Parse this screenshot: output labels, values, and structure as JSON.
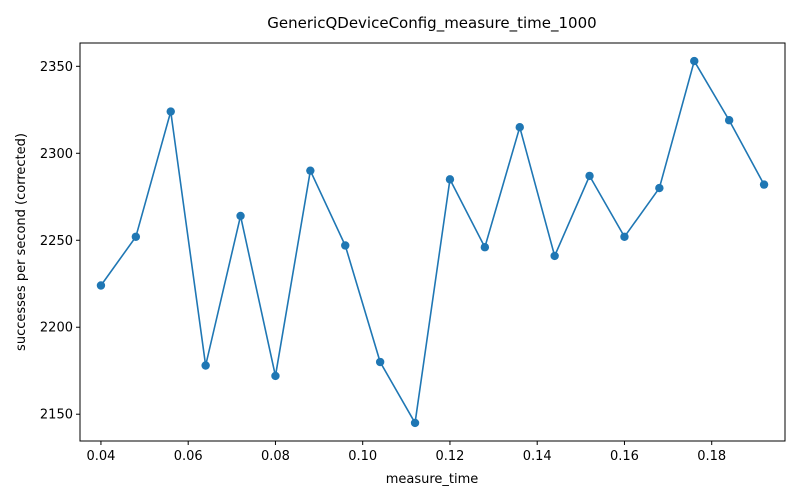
{
  "chart_data": {
    "type": "line",
    "title": "GenericQDeviceConfig_measure_time_1000",
    "xlabel": "measure_time",
    "ylabel": "successes per second (corrected)",
    "xlim": [
      0.0352,
      0.1968
    ],
    "ylim": [
      2134.6,
      2363.4
    ],
    "xticks": [
      0.04,
      0.06,
      0.08,
      0.1,
      0.12,
      0.14,
      0.16,
      0.18
    ],
    "xtick_labels": [
      "0.04",
      "0.06",
      "0.08",
      "0.10",
      "0.12",
      "0.14",
      "0.16",
      "0.18"
    ],
    "yticks": [
      2150,
      2200,
      2250,
      2300,
      2350
    ],
    "ytick_labels": [
      "2150",
      "2200",
      "2250",
      "2300",
      "2350"
    ],
    "grid": false,
    "color": "#1f77b4",
    "series": [
      {
        "x": [
          0.04,
          0.048,
          0.056,
          0.064,
          0.072,
          0.08,
          0.088,
          0.096,
          0.104,
          0.112,
          0.12,
          0.128,
          0.136,
          0.144,
          0.152,
          0.16,
          0.168,
          0.176,
          0.184,
          0.192
        ],
        "y": [
          2224,
          2252,
          2324,
          2178,
          2264,
          2172,
          2290,
          2247,
          2180,
          2145,
          2285,
          2246,
          2315,
          2241,
          2287,
          2252,
          2280,
          2353,
          2319,
          2282
        ]
      }
    ]
  }
}
